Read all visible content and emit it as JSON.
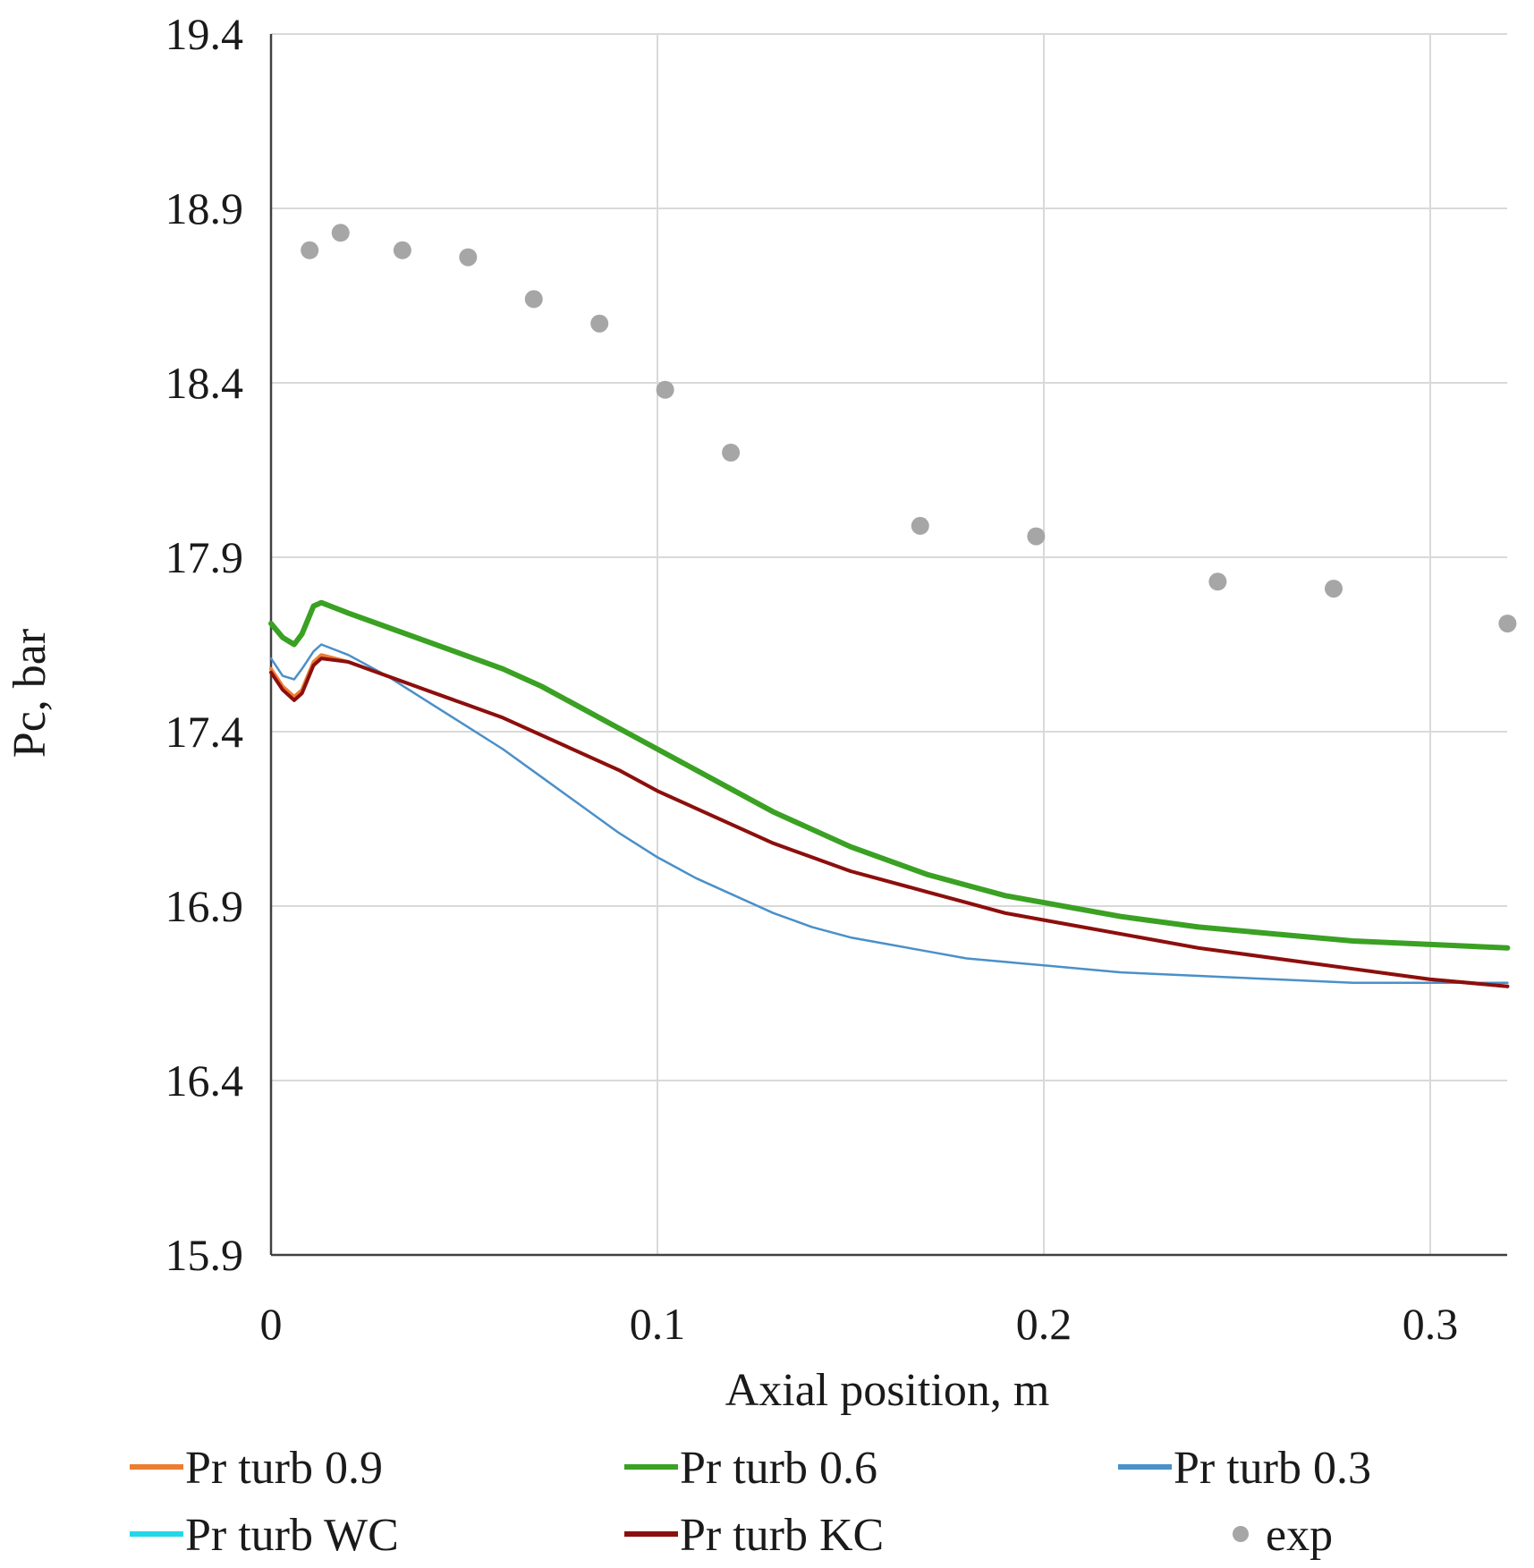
{
  "chart_data": {
    "type": "line",
    "title": "",
    "xlabel": "Axial position, m",
    "ylabel": "Pc, bar",
    "xlim": [
      0,
      0.32
    ],
    "ylim": [
      15.9,
      19.4
    ],
    "xticks": [
      "0",
      "0.1",
      "0.2",
      "0.3"
    ],
    "yticks": [
      "15.9",
      "16.4",
      "16.9",
      "17.4",
      "17.9",
      "18.4",
      "18.9",
      "19.4"
    ],
    "grid": true,
    "legend_position": "bottom",
    "series": [
      {
        "name": "Pr turb 0.9",
        "color": "#ED7D31",
        "marker": "line",
        "x": [
          0,
          0.003,
          0.006,
          0.008,
          0.011,
          0.013,
          0.02,
          0.03,
          0.04,
          0.05,
          0.06,
          0.07,
          0.08,
          0.09,
          0.1,
          0.11,
          0.12,
          0.13,
          0.14,
          0.15,
          0.16,
          0.17,
          0.18,
          0.19,
          0.2,
          0.22,
          0.24,
          0.26,
          0.28,
          0.3,
          0.32
        ],
        "y": [
          17.58,
          17.53,
          17.5,
          17.52,
          17.6,
          17.62,
          17.6,
          17.56,
          17.52,
          17.48,
          17.44,
          17.39,
          17.34,
          17.29,
          17.23,
          17.18,
          17.13,
          17.08,
          17.04,
          17.0,
          16.97,
          16.94,
          16.91,
          16.88,
          16.86,
          16.82,
          16.78,
          16.75,
          16.72,
          16.69,
          16.67
        ]
      },
      {
        "name": "Pr turb 0.6",
        "color": "#3AA123",
        "marker": "line",
        "x": [
          0,
          0.003,
          0.006,
          0.008,
          0.011,
          0.013,
          0.02,
          0.03,
          0.04,
          0.05,
          0.06,
          0.07,
          0.08,
          0.09,
          0.1,
          0.11,
          0.12,
          0.13,
          0.14,
          0.15,
          0.16,
          0.17,
          0.18,
          0.19,
          0.2,
          0.22,
          0.24,
          0.26,
          0.28,
          0.3,
          0.32
        ],
        "y": [
          17.71,
          17.67,
          17.65,
          17.68,
          17.76,
          17.77,
          17.74,
          17.7,
          17.66,
          17.62,
          17.58,
          17.53,
          17.47,
          17.41,
          17.35,
          17.29,
          17.23,
          17.17,
          17.12,
          17.07,
          17.03,
          16.99,
          16.96,
          16.93,
          16.91,
          16.87,
          16.84,
          16.82,
          16.8,
          16.79,
          16.78
        ]
      },
      {
        "name": "Pr turb 0.3",
        "color": "#4A90C9",
        "marker": "line",
        "x": [
          0,
          0.003,
          0.006,
          0.008,
          0.011,
          0.013,
          0.02,
          0.03,
          0.04,
          0.05,
          0.06,
          0.07,
          0.08,
          0.09,
          0.1,
          0.11,
          0.12,
          0.13,
          0.14,
          0.15,
          0.16,
          0.17,
          0.18,
          0.19,
          0.2,
          0.22,
          0.24,
          0.26,
          0.28,
          0.3,
          0.32
        ],
        "y": [
          17.61,
          17.56,
          17.55,
          17.58,
          17.63,
          17.65,
          17.62,
          17.56,
          17.49,
          17.42,
          17.35,
          17.27,
          17.19,
          17.11,
          17.04,
          16.98,
          16.93,
          16.88,
          16.84,
          16.81,
          16.79,
          16.77,
          16.75,
          16.74,
          16.73,
          16.71,
          16.7,
          16.69,
          16.68,
          16.68,
          16.68
        ]
      },
      {
        "name": "Pr turb WC",
        "color": "#22D8E8",
        "marker": "line",
        "x": [
          0,
          0.003,
          0.006,
          0.008,
          0.011,
          0.013,
          0.02,
          0.03,
          0.04,
          0.05,
          0.06,
          0.07,
          0.08,
          0.09,
          0.1,
          0.11,
          0.12,
          0.13,
          0.14,
          0.15,
          0.16,
          0.17,
          0.18,
          0.19,
          0.2,
          0.22,
          0.24,
          0.26,
          0.28,
          0.3,
          0.32
        ],
        "y": [
          17.57,
          17.52,
          17.49,
          17.51,
          17.59,
          17.61,
          17.6,
          17.56,
          17.52,
          17.48,
          17.44,
          17.39,
          17.34,
          17.29,
          17.23,
          17.18,
          17.13,
          17.08,
          17.04,
          17.0,
          16.97,
          16.94,
          16.91,
          16.88,
          16.86,
          16.82,
          16.78,
          16.75,
          16.72,
          16.69,
          16.67
        ]
      },
      {
        "name": "Pr turb KC",
        "color": "#8B0F0F",
        "marker": "line",
        "x": [
          0,
          0.003,
          0.006,
          0.008,
          0.011,
          0.013,
          0.02,
          0.03,
          0.04,
          0.05,
          0.06,
          0.07,
          0.08,
          0.09,
          0.1,
          0.11,
          0.12,
          0.13,
          0.14,
          0.15,
          0.16,
          0.17,
          0.18,
          0.19,
          0.2,
          0.22,
          0.24,
          0.26,
          0.28,
          0.3,
          0.32
        ],
        "y": [
          17.57,
          17.52,
          17.49,
          17.51,
          17.59,
          17.61,
          17.6,
          17.56,
          17.52,
          17.48,
          17.44,
          17.39,
          17.34,
          17.29,
          17.23,
          17.18,
          17.13,
          17.08,
          17.04,
          17.0,
          16.97,
          16.94,
          16.91,
          16.88,
          16.86,
          16.82,
          16.78,
          16.75,
          16.72,
          16.69,
          16.67
        ]
      },
      {
        "name": "exp",
        "color": "#A6A6A6",
        "marker": "dot",
        "x": [
          0.01,
          0.018,
          0.034,
          0.051,
          0.068,
          0.085,
          0.102,
          0.119,
          0.168,
          0.198,
          0.245,
          0.275,
          0.32
        ],
        "y": [
          18.78,
          18.83,
          18.78,
          18.76,
          18.64,
          18.57,
          18.38,
          18.2,
          17.99,
          17.96,
          17.83,
          17.81,
          17.71
        ]
      }
    ]
  }
}
